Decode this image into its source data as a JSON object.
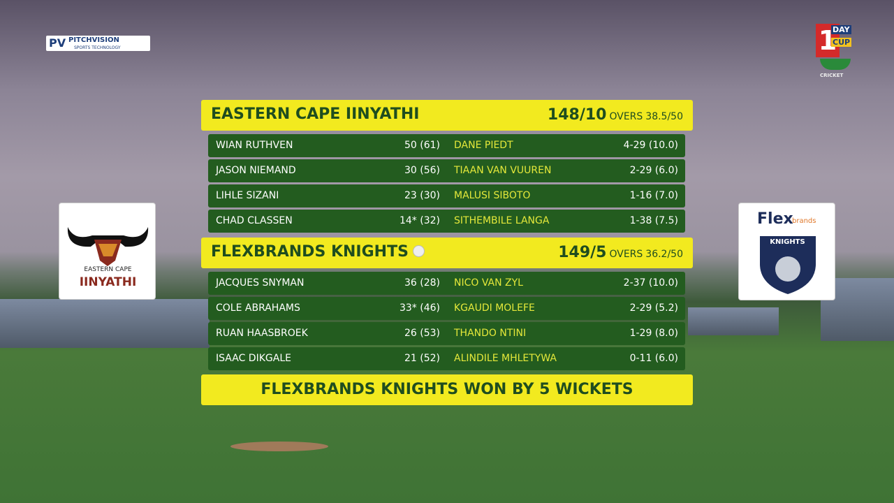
{
  "logos": {
    "pitchvision": {
      "name": "PITCHVISION",
      "tagline": "SPORTS TECHNOLOGY"
    },
    "competition": {
      "number": "1",
      "word1": "DAY",
      "word2": "CUP",
      "sport": "CRICKET"
    },
    "home": {
      "line1": "EASTERN CAPE",
      "line2": "IINYATHI"
    },
    "away": {
      "brand1": "Flex",
      "brand2": "brands",
      "team": "KNIGHTS"
    }
  },
  "innings": [
    {
      "team": "EASTERN CAPE IINYATHI",
      "score": "148/10",
      "overs_label": "OVERS",
      "overs": "38.5/50",
      "batting": [
        {
          "name": "WIAN RUTHVEN",
          "score": "50 (61)"
        },
        {
          "name": "JASON NIEMAND",
          "score": "30 (56)"
        },
        {
          "name": "LIHLE SIZANI",
          "score": "23 (30)"
        },
        {
          "name": "CHAD CLASSEN",
          "score": "14* (32)"
        }
      ],
      "bowling": [
        {
          "name": "DANE PIEDT",
          "figures": "4-29 (10.0)"
        },
        {
          "name": "TIAAN VAN VUUREN",
          "figures": "2-29 (6.0)"
        },
        {
          "name": "MALUSI SIBOTO",
          "figures": "1-16 (7.0)"
        },
        {
          "name": "SITHEMBILE LANGA",
          "figures": "1-38 (7.5)"
        }
      ]
    },
    {
      "team": "FLEXBRANDS KNIGHTS",
      "score": "149/5",
      "overs_label": "OVERS",
      "overs": "36.2/50",
      "batting": [
        {
          "name": "JACQUES SNYMAN",
          "score": "36 (28)"
        },
        {
          "name": "COLE ABRAHAMS",
          "score": "33* (46)"
        },
        {
          "name": "RUAN HAASBROEK",
          "score": "26 (53)"
        },
        {
          "name": "ISAAC DIKGALE",
          "score": "21 (52)"
        }
      ],
      "bowling": [
        {
          "name": "NICO VAN ZYL",
          "figures": "2-37 (10.0)"
        },
        {
          "name": "KGAUDI MOLEFE",
          "figures": "2-29 (5.2)"
        },
        {
          "name": "THANDO NTINI",
          "figures": "1-29 (8.0)"
        },
        {
          "name": "ALINDILE MHLETYWA",
          "figures": "0-11 (6.0)"
        }
      ]
    }
  ],
  "result": "FLEXBRANDS KNIGHTS WON BY 5 WICKETS"
}
